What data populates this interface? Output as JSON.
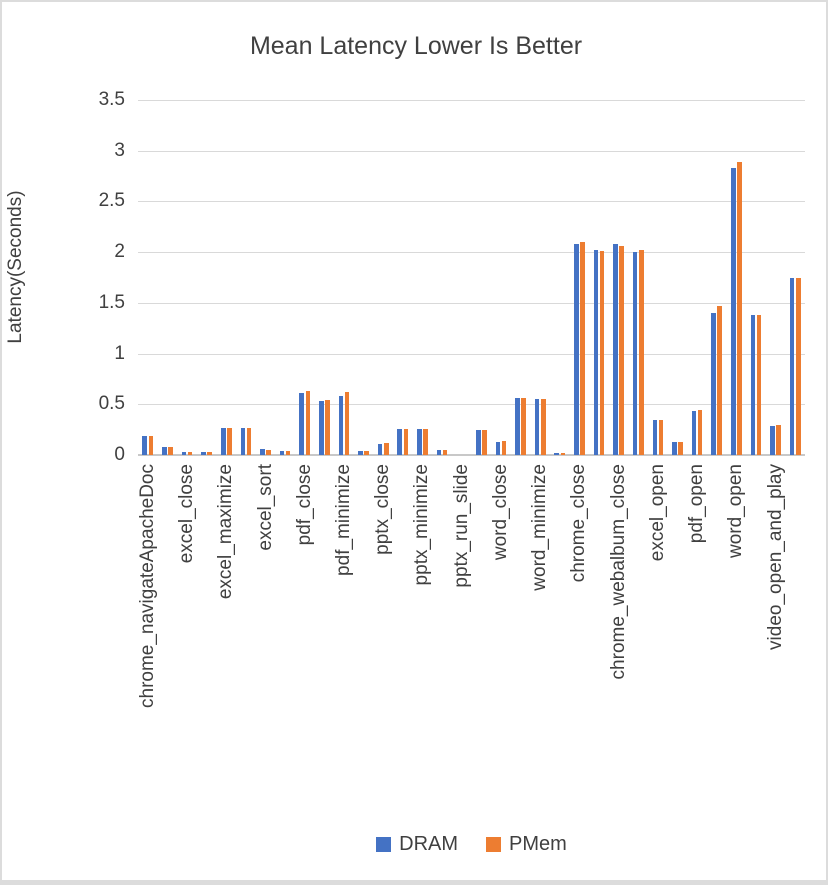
{
  "chart": {
    "title": "Mean Latency Lower Is Better",
    "y_axis_title": "Latency(Seconds)"
  },
  "legend": {
    "items": [
      {
        "label": "DRAM",
        "color": "#4472C4"
      },
      {
        "label": "PMem",
        "color": "#ED7D31"
      }
    ]
  },
  "colors": {
    "dram": "#4472C4",
    "pmem": "#ED7D31",
    "gridline": "#d9d9d9",
    "axis_text": "#404040",
    "frame_border": "#dcdcdc"
  },
  "chart_data": {
    "type": "bar",
    "title": "Mean Latency Lower Is Better",
    "xlabel": "",
    "ylabel": "Latency(Seconds)",
    "ylim": [
      0,
      3.5
    ],
    "ytick_step": 0.5,
    "grid": true,
    "legend_position": "bottom",
    "x_label_interval": 2,
    "categories": [
      "chrome_navigateApacheDoc",
      "",
      "excel_close",
      "",
      "excel_maximize",
      "",
      "excel_sort",
      "",
      "pdf_close",
      "",
      "pdf_minimize",
      "",
      "pptx_close",
      "",
      "pptx_minimize",
      "",
      "pptx_run_slide",
      "",
      "word_close",
      "",
      "word_minimize",
      "",
      "chrome_close",
      "",
      "chrome_webalbum_close",
      "",
      "excel_open",
      "",
      "pdf_open",
      "",
      "word_open",
      "",
      "video_open_and_play",
      ""
    ],
    "series": [
      {
        "name": "DRAM",
        "color": "#4472C4",
        "values": [
          0.19,
          0.08,
          0.025,
          0.025,
          0.265,
          0.265,
          0.055,
          0.035,
          0.61,
          0.535,
          0.585,
          0.04,
          0.11,
          0.26,
          0.26,
          0.05,
          0,
          0.245,
          0.125,
          0.56,
          0.55,
          0.02,
          2.08,
          2.02,
          2.08,
          2.0,
          0.35,
          0.125,
          0.43,
          1.4,
          2.83,
          1.38,
          0.29,
          1.75
        ]
      },
      {
        "name": "PMem",
        "color": "#ED7D31",
        "values": [
          0.19,
          0.075,
          0.025,
          0.025,
          0.27,
          0.27,
          0.05,
          0.035,
          0.635,
          0.545,
          0.62,
          0.035,
          0.115,
          0.26,
          0.26,
          0.05,
          0,
          0.25,
          0.14,
          0.56,
          0.55,
          0.02,
          2.1,
          2.01,
          2.06,
          2.02,
          0.35,
          0.125,
          0.445,
          1.47,
          2.89,
          1.38,
          0.3,
          1.75
        ]
      }
    ]
  }
}
